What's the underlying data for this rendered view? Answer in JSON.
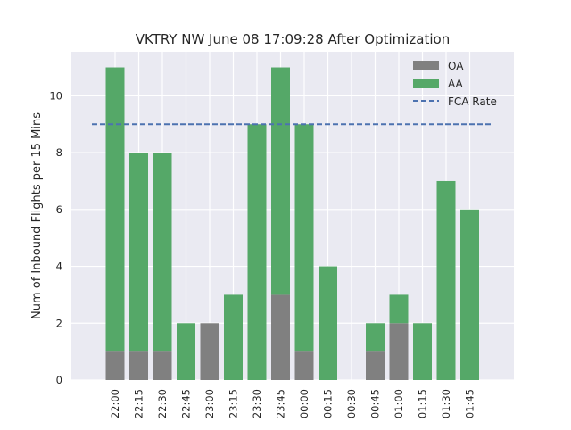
{
  "chart_data": {
    "type": "bar",
    "stacked": true,
    "title": "VKTRY NW June 08 17:09:28 After Optimization",
    "xlabel": "",
    "ylabel": "Num of Inbound Flights per 15 Mins",
    "categories": [
      "22:00",
      "22:15",
      "22:30",
      "22:45",
      "23:00",
      "23:15",
      "23:30",
      "23:45",
      "00:00",
      "00:15",
      "00:30",
      "00:45",
      "01:00",
      "01:15",
      "01:30",
      "01:45"
    ],
    "series": [
      {
        "name": "OA",
        "color": "#808080",
        "values": [
          1,
          1,
          1,
          0,
          2,
          0,
          0,
          3,
          1,
          0,
          0,
          1,
          2,
          0,
          0,
          0
        ]
      },
      {
        "name": "AA",
        "color": "#55a868",
        "values": [
          10,
          7,
          7,
          2,
          0,
          3,
          9,
          8,
          8,
          4,
          0,
          1,
          1,
          2,
          7,
          6
        ]
      }
    ],
    "reference_line": {
      "name": "FCA Rate",
      "value": 9,
      "style": "dashed",
      "color": "#4c72b0"
    },
    "ylim": [
      0,
      11.55
    ],
    "yticks": [
      0,
      2,
      4,
      6,
      8,
      10
    ],
    "grid": true,
    "background": "#eaeaf2",
    "legend_position": "top-right"
  }
}
